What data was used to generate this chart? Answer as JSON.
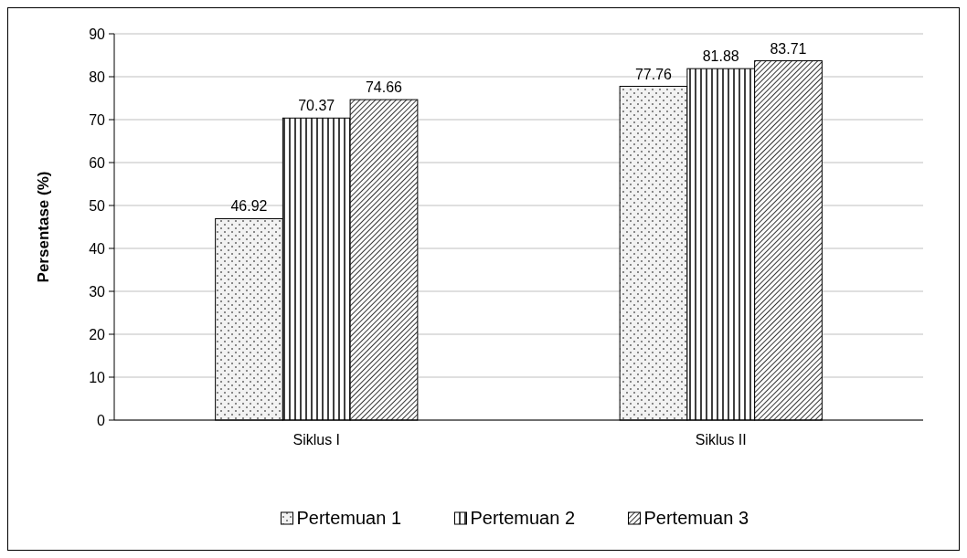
{
  "chart_data": {
    "type": "bar",
    "ylabel": "Persentase (%)",
    "categories": [
      "Siklus I",
      "Siklus II"
    ],
    "series": [
      {
        "name": "Pertemuan 1",
        "color": "#000000",
        "values": [
          46.92,
          77.76
        ]
      },
      {
        "name": "Pertemuan 2",
        "color": "#000000",
        "values": [
          70.37,
          81.88
        ]
      },
      {
        "name": "Pertemuan 3",
        "color": "#000000",
        "values": [
          74.66,
          83.71
        ]
      }
    ],
    "ylim": [
      0,
      90
    ],
    "yticks": [
      0,
      10,
      20,
      30,
      40,
      50,
      60,
      70,
      80,
      90
    ],
    "grid": "y",
    "legend": "bottom",
    "data_labels": true
  }
}
